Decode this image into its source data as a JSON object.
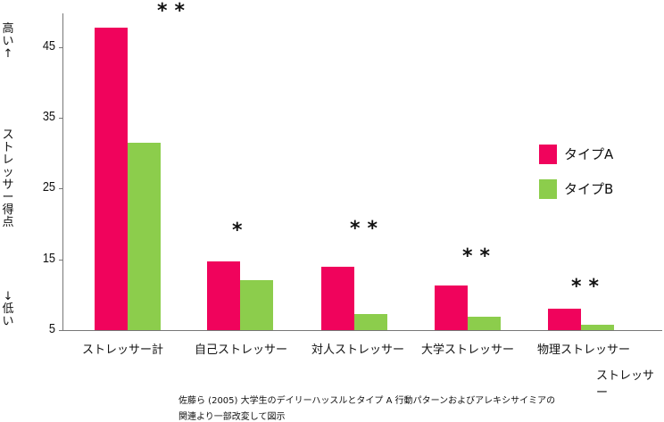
{
  "chart_data": {
    "type": "bar",
    "title": "",
    "xlabel": "ストレッサー",
    "ylabel": "ストレッサー得点",
    "ylabel_high": "高い↑",
    "ylabel_low": "↓低い",
    "ylim": [
      5,
      50
    ],
    "yticks": [
      "5",
      "15",
      "25",
      "35",
      "45"
    ],
    "categories": [
      "ストレッサー計",
      "自己ストレッサー",
      "対人ストレッサー",
      "大学ストレッサー",
      "物理ストレッサー"
    ],
    "series": [
      {
        "name": "タイプA",
        "color": "#f0035c",
        "values": [
          47.7,
          14.7,
          13.9,
          11.3,
          8.0
        ]
      },
      {
        "name": "タイプB",
        "color": "#8ccd4c",
        "values": [
          31.5,
          12.0,
          7.3,
          6.9,
          5.8
        ]
      }
    ],
    "annotations": [
      "＊＊",
      "＊",
      "＊＊",
      "＊＊",
      "＊＊"
    ],
    "legend_position": "right",
    "grid": false
  },
  "source_note": {
    "line1": "佐藤ら (2005) 大学生のデイリーハッスルとタイプ A 行動パターンおよびアレキシサイミアの",
    "line2": "関連より一部改変して図示"
  }
}
